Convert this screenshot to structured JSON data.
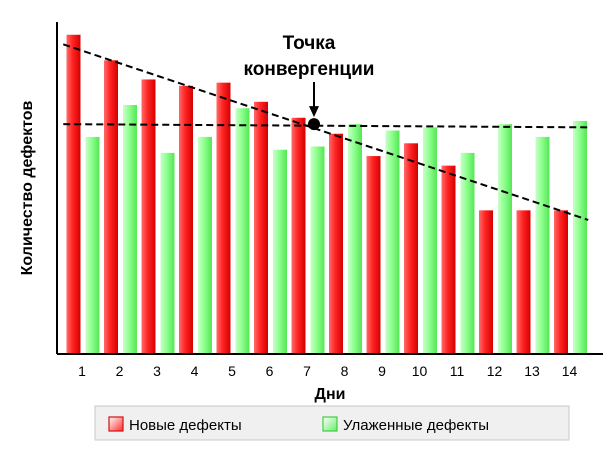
{
  "chart_data": {
    "type": "bar",
    "categories": [
      "1",
      "2",
      "3",
      "4",
      "5",
      "6",
      "7",
      "8",
      "9",
      "10",
      "11",
      "12",
      "13",
      "14"
    ],
    "series": [
      {
        "name": "Новые дефекты",
        "values": [
          100,
          92,
          86,
          84,
          85,
          79,
          74,
          69,
          62,
          66,
          59,
          45,
          45,
          45
        ],
        "color": "#ff2b2b"
      },
      {
        "name": "Улаженные дефекты",
        "values": [
          68,
          78,
          63,
          68,
          77,
          64,
          65,
          72,
          70,
          71,
          63,
          72,
          68,
          73
        ],
        "color": "#7dff7d"
      }
    ],
    "xlabel": "Дни",
    "ylabel": "Количество дефектов",
    "ylim": [
      0,
      104
    ],
    "grid": false,
    "legend_position": "bottom",
    "annotation": {
      "line1": "Точка",
      "line2": "конвергенции",
      "day": 7,
      "value": 72
    },
    "trend_lines": {
      "new_defects": {
        "start": [
          0.5,
          97
        ],
        "end": [
          14.5,
          42
        ]
      },
      "resolved_defects": {
        "start": [
          0.5,
          72
        ],
        "end": [
          14.5,
          71
        ]
      }
    }
  }
}
